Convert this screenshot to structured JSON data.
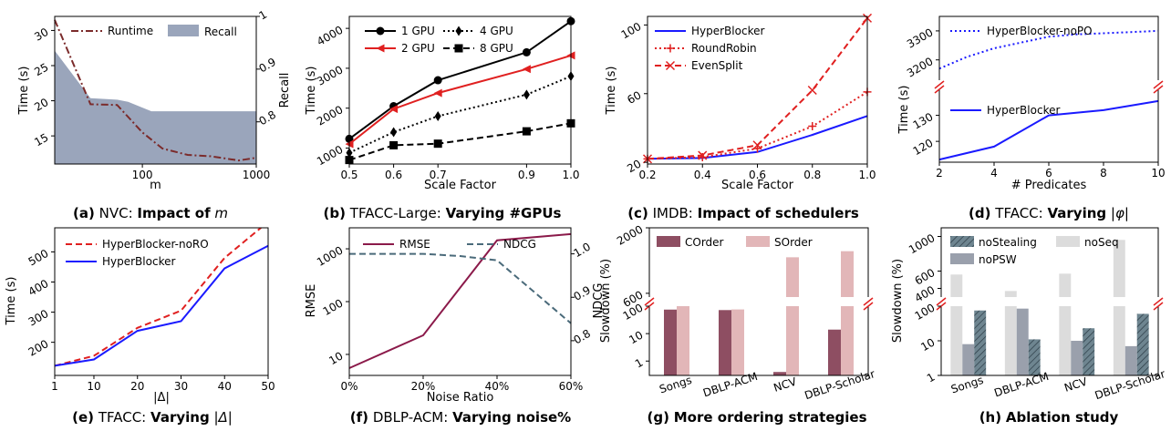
{
  "chart_data": [
    {
      "id": "a",
      "type": "line",
      "dual_axis": true,
      "caption": {
        "tag": "(a)",
        "dataset": "NVC:",
        "rest": "Impact of",
        "math": "m"
      },
      "xlabel": "m",
      "ylabel": "Time (s)",
      "y2label": "Recall",
      "xscale": "log",
      "xlim": [
        17,
        1000
      ],
      "ylim": [
        11,
        32
      ],
      "y2lim": [
        0.72,
        1.0
      ],
      "xticks": [
        {
          "v": 100,
          "label": "100"
        },
        {
          "v": 1000,
          "label": "1000"
        }
      ],
      "yticks": [
        {
          "v": 15,
          "label": "15"
        },
        {
          "v": 20,
          "label": "20"
        },
        {
          "v": 25,
          "label": "25"
        },
        {
          "v": 30,
          "label": "30"
        }
      ],
      "y2ticks": [
        {
          "v": 0.8,
          "label": "0.8"
        },
        {
          "v": 0.9,
          "label": "0.9"
        },
        {
          "v": 1.0,
          "label": "1"
        }
      ],
      "legend": "top",
      "series": [
        {
          "name": "Runtime",
          "axis": "y",
          "style": "dashdot",
          "color": "#7b2b2b",
          "x": [
            17,
            35,
            60,
            100,
            150,
            250,
            400,
            700,
            1000
          ],
          "y": [
            31.5,
            19.5,
            19.4,
            15.5,
            13.2,
            12.3,
            12.1,
            11.5,
            11.9
          ]
        },
        {
          "name": "Recall",
          "axis": "y2",
          "style": "area",
          "color": "#9aa5bb",
          "x": [
            17,
            35,
            60,
            75,
            120,
            1000
          ],
          "y": [
            0.935,
            0.845,
            0.842,
            0.838,
            0.82,
            0.82
          ]
        }
      ]
    },
    {
      "id": "b",
      "type": "line",
      "caption": {
        "tag": "(b)",
        "dataset": "TFACC-Large:",
        "rest": "Varying #GPUs"
      },
      "xlabel": "Scale Factor",
      "ylabel": "Time (s)",
      "xlim": [
        0.5,
        1.0
      ],
      "ylim": [
        600,
        4300
      ],
      "xticks": [
        {
          "v": 0.5,
          "label": "0.5"
        },
        {
          "v": 0.6,
          "label": "0.6"
        },
        {
          "v": 0.7,
          "label": "0.7"
        },
        {
          "v": 0.9,
          "label": "0.9"
        },
        {
          "v": 1.0,
          "label": "1.0"
        }
      ],
      "yticks": [
        {
          "v": 1000,
          "label": "1000"
        },
        {
          "v": 2000,
          "label": "2000"
        },
        {
          "v": 3000,
          "label": "3000"
        },
        {
          "v": 4000,
          "label": "4000"
        }
      ],
      "legend": "top-left-2col",
      "series": [
        {
          "name": "1 GPU",
          "color": "#000000",
          "style": "solid",
          "marker": "circle",
          "x": [
            0.5,
            0.6,
            0.7,
            0.9,
            1.0
          ],
          "y": [
            1230,
            2050,
            2700,
            3400,
            4180
          ]
        },
        {
          "name": "2 GPU",
          "color": "#e02020",
          "style": "solid",
          "marker": "triangle-left",
          "x": [
            0.5,
            0.6,
            0.7,
            0.9,
            1.0
          ],
          "y": [
            1100,
            1980,
            2380,
            2980,
            3320
          ]
        },
        {
          "name": "4 GPU",
          "color": "#000000",
          "style": "dotted",
          "marker": "diamond",
          "x": [
            0.5,
            0.6,
            0.7,
            0.9,
            1.0
          ],
          "y": [
            880,
            1400,
            1800,
            2340,
            2800
          ]
        },
        {
          "name": "8 GPU",
          "color": "#000000",
          "style": "dashed",
          "marker": "square",
          "x": [
            0.5,
            0.6,
            0.7,
            0.9,
            1.0
          ],
          "y": [
            700,
            1070,
            1110,
            1420,
            1620
          ]
        }
      ]
    },
    {
      "id": "c",
      "type": "line",
      "caption": {
        "tag": "(c)",
        "dataset": "IMDB:",
        "rest": "Impact of schedulers"
      },
      "xlabel": "Scale Factor",
      "ylabel": "Time (s)",
      "xlim": [
        0.2,
        1.0
      ],
      "ylim": [
        19,
        105
      ],
      "xticks": [
        {
          "v": 0.2,
          "label": "0.2"
        },
        {
          "v": 0.4,
          "label": "0.4"
        },
        {
          "v": 0.6,
          "label": "0.6"
        },
        {
          "v": 0.8,
          "label": "0.8"
        },
        {
          "v": 1.0,
          "label": "1.0"
        }
      ],
      "yticks": [
        {
          "v": 20,
          "label": "20"
        },
        {
          "v": 60,
          "label": "60"
        },
        {
          "v": 100,
          "label": "100"
        }
      ],
      "legend": "top-left",
      "series": [
        {
          "name": "HyperBlocker",
          "color": "#1a1aff",
          "style": "solid",
          "x": [
            0.2,
            0.4,
            0.6,
            0.8,
            1.0
          ],
          "y": [
            22,
            22.5,
            26,
            36,
            47
          ]
        },
        {
          "name": "RoundRobin",
          "color": "#e02020",
          "style": "dotted",
          "marker": "plus",
          "x": [
            0.2,
            0.4,
            0.6,
            0.8,
            1.0
          ],
          "y": [
            22,
            23,
            28,
            41,
            61
          ]
        },
        {
          "name": "EvenSplit",
          "color": "#e02020",
          "style": "dashed",
          "marker": "x",
          "x": [
            0.2,
            0.4,
            0.6,
            0.8,
            1.0
          ],
          "y": [
            22,
            24,
            30,
            62,
            104
          ]
        }
      ]
    },
    {
      "id": "d",
      "type": "line",
      "broken_axis": true,
      "caption": {
        "tag": "(d)",
        "dataset": "TFACC:",
        "rest": "Varying",
        "math": "|φ|"
      },
      "xlabel": "# Predicates",
      "ylabel": "Time (s)",
      "xlim": [
        2,
        10
      ],
      "xticks": [
        {
          "v": 2,
          "label": "2"
        },
        {
          "v": 4,
          "label": "4"
        },
        {
          "v": 6,
          "label": "6"
        },
        {
          "v": 8,
          "label": "8"
        },
        {
          "v": 10,
          "label": "10"
        }
      ],
      "upper": {
        "ylim": [
          3130,
          3350
        ],
        "yticks": [
          {
            "v": 3200,
            "label": "3200"
          },
          {
            "v": 3300,
            "label": "3300"
          }
        ]
      },
      "lower": {
        "ylim": [
          112,
          140
        ],
        "yticks": [
          {
            "v": 120,
            "label": "120"
          },
          {
            "v": 130,
            "label": "130"
          }
        ]
      },
      "series": [
        {
          "name": "HyperBlocker-noPO",
          "panel": "upper",
          "color": "#1a1aff",
          "style": "dotted",
          "x": [
            2,
            3,
            4,
            5,
            6,
            7,
            8,
            9,
            10
          ],
          "y": [
            3170,
            3210,
            3240,
            3260,
            3280,
            3288,
            3292,
            3296,
            3300
          ]
        },
        {
          "name": "HyperBlocker",
          "panel": "lower",
          "color": "#1a1aff",
          "style": "solid",
          "x": [
            2,
            4,
            6,
            8,
            10
          ],
          "y": [
            113,
            118,
            130,
            132,
            135.5
          ]
        }
      ]
    },
    {
      "id": "e",
      "type": "line",
      "caption": {
        "tag": "(e)",
        "dataset": "TFACC:",
        "rest": "Varying",
        "math": "|Δ|"
      },
      "xlabel": "|Δ|",
      "ylabel": "Time (s)",
      "xlim": [
        1,
        50
      ],
      "ylim": [
        90,
        580
      ],
      "xticks": [
        {
          "v": 1,
          "label": "1"
        },
        {
          "v": 10,
          "label": "10"
        },
        {
          "v": 20,
          "label": "20"
        },
        {
          "v": 30,
          "label": "30"
        },
        {
          "v": 40,
          "label": "40"
        },
        {
          "v": 50,
          "label": "50"
        }
      ],
      "yticks": [
        {
          "v": 200,
          "label": "200"
        },
        {
          "v": 300,
          "label": "300"
        },
        {
          "v": 400,
          "label": "400"
        },
        {
          "v": 500,
          "label": "500"
        }
      ],
      "legend": "top-left",
      "series": [
        {
          "name": "HyperBlocker-noRO",
          "color": "#e02020",
          "style": "dashed",
          "x": [
            1,
            10,
            20,
            30,
            40,
            50
          ],
          "y": [
            122,
            155,
            248,
            305,
            480,
            600
          ]
        },
        {
          "name": "HyperBlocker",
          "color": "#1a1aff",
          "style": "solid",
          "x": [
            1,
            10,
            20,
            30,
            40,
            50
          ],
          "y": [
            122,
            143,
            238,
            270,
            445,
            520
          ]
        }
      ]
    },
    {
      "id": "f",
      "type": "line",
      "dual_axis": true,
      "caption": {
        "tag": "(f)",
        "dataset": "DBLP-ACM:",
        "rest": "Varying noise%"
      },
      "xlabel": "Noise Ratio",
      "ylabel": "RMSE",
      "y2label": "NDCG",
      "yscale": "log",
      "xlim": [
        0,
        60
      ],
      "ylim": [
        4,
        2500
      ],
      "y2lim": [
        0.72,
        1.06
      ],
      "xticks": [
        {
          "v": 0,
          "label": "0%"
        },
        {
          "v": 20,
          "label": "20%"
        },
        {
          "v": 40,
          "label": "40%"
        },
        {
          "v": 60,
          "label": "60%"
        }
      ],
      "yticks": [
        {
          "v": 10,
          "label": "10"
        },
        {
          "v": 100,
          "label": "100"
        },
        {
          "v": 1000,
          "label": "1000"
        }
      ],
      "y2ticks": [
        {
          "v": 0.8,
          "label": "0.8"
        },
        {
          "v": 0.9,
          "label": "0.9"
        },
        {
          "v": 1.0,
          "label": "1.0"
        }
      ],
      "legend": "top",
      "series": [
        {
          "name": "RMSE",
          "axis": "y",
          "color": "#8b1a4a",
          "style": "solid",
          "x": [
            0,
            20,
            40,
            60
          ],
          "y": [
            5.5,
            23,
            1450,
            1900
          ]
        },
        {
          "name": "NDCG",
          "axis": "y2",
          "color": "#4a6a7a",
          "style": "dashed",
          "x": [
            0,
            20,
            30,
            40,
            60
          ],
          "y": [
            1.0,
            1.0,
            0.995,
            0.985,
            0.84
          ]
        }
      ]
    },
    {
      "id": "g",
      "type": "bar",
      "broken_axis": true,
      "caption": {
        "tag": "(g)",
        "rest": "More ordering strategies"
      },
      "ylabel": "Slowdown (%)",
      "categories": [
        "Songs",
        "DBLP-ACM",
        "NCV",
        "DBLP-Scholar"
      ],
      "upper": {
        "ylim": [
          520,
          2000
        ],
        "yticks": [
          {
            "v": 600,
            "label": "600"
          },
          {
            "v": 2000,
            "label": "2000"
          }
        ]
      },
      "lower": {
        "yscale": "log",
        "ylim": [
          0.3,
          100
        ],
        "yticks": [
          {
            "v": 1,
            "label": "1"
          },
          {
            "v": 10,
            "label": "10"
          },
          {
            "v": 100,
            "label": "100"
          }
        ]
      },
      "legend": "top",
      "series": [
        {
          "name": "COrder",
          "color": "#8e4e62",
          "values": [
            75,
            72,
            0.4,
            14
          ]
        },
        {
          "name": "SOrder",
          "color": "#e2b6b8",
          "values": [
            500,
            76,
            1370,
            1500
          ]
        }
      ]
    },
    {
      "id": "h",
      "type": "bar",
      "broken_axis": true,
      "caption": {
        "tag": "(h)",
        "rest": "Ablation study"
      },
      "ylabel": "Slowdown (%)",
      "categories": [
        "Songs",
        "DBLP-ACM",
        "NCV",
        "DBLP-Scholar"
      ],
      "upper": {
        "ylim": [
          300,
          1100
        ],
        "yticks": [
          {
            "v": 400,
            "label": "400"
          },
          {
            "v": 600,
            "label": "600"
          },
          {
            "v": 1000,
            "label": "1000"
          }
        ]
      },
      "lower": {
        "yscale": "log",
        "ylim": [
          1,
          100
        ],
        "yticks": [
          {
            "v": 1,
            "label": "1"
          },
          {
            "v": 10,
            "label": "10"
          },
          {
            "v": 100,
            "label": "100"
          }
        ]
      },
      "legend": "top",
      "series": [
        {
          "name": "noSeq",
          "color": "#dcdcdc",
          "values": [
            560,
            370,
            570,
            960
          ]
        },
        {
          "name": "noPSW",
          "color": "#9aa0ac",
          "values": [
            8,
            85,
            10,
            7
          ]
        },
        {
          "name": "noStealing",
          "color": "#6e8590",
          "hatch": true,
          "values": [
            75,
            11,
            23,
            60
          ]
        }
      ]
    }
  ]
}
